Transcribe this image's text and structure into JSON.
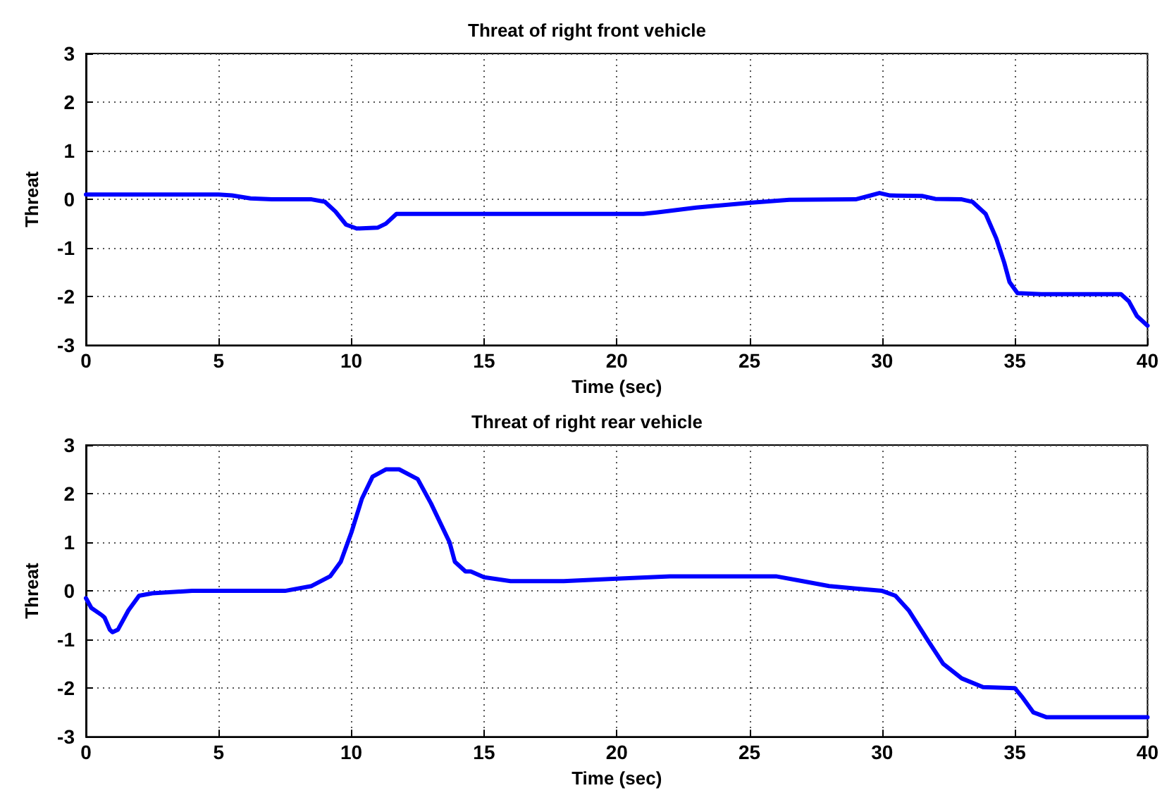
{
  "chart_data": [
    {
      "type": "line",
      "title": "Threat of right front vehicle",
      "xlabel": "Time (sec)",
      "ylabel": "Threat",
      "xlim": [
        0,
        40
      ],
      "xticks": [
        0,
        5,
        10,
        15,
        20,
        25,
        30,
        35,
        40
      ],
      "ylim": [
        -3,
        3
      ],
      "yticks": [
        -3,
        -2,
        -1,
        0,
        1,
        2,
        3
      ],
      "grid": true,
      "marker": "none",
      "line_style": "solid",
      "series": [
        {
          "color": "#0000ff",
          "x": [
            0,
            5,
            5.5,
            6.2,
            7,
            8.5,
            9,
            9.4,
            9.8,
            10.2,
            11,
            11.3,
            11.7,
            15,
            21,
            21.5,
            23,
            25,
            26.5,
            29,
            29.5,
            29.9,
            30.3,
            31.5,
            32,
            33,
            33.4,
            33.9,
            34.3,
            34.6,
            34.8,
            35.1,
            36,
            39,
            39.3,
            39.6,
            40
          ],
          "values": [
            0.1,
            0.1,
            0.08,
            0.02,
            0,
            0,
            -0.05,
            -0.25,
            -0.52,
            -0.6,
            -0.58,
            -0.5,
            -0.3,
            -0.3,
            -0.3,
            -0.27,
            -0.17,
            -0.07,
            -0.01,
            0,
            0.07,
            0.13,
            0.08,
            0.07,
            0.01,
            0,
            -0.05,
            -0.3,
            -0.8,
            -1.3,
            -1.7,
            -1.93,
            -1.95,
            -1.95,
            -2.1,
            -2.4,
            -2.6
          ]
        }
      ]
    },
    {
      "type": "line",
      "title": "Threat of right rear vehicle",
      "xlabel": "Time (sec)",
      "ylabel": "Threat",
      "xlim": [
        0,
        40
      ],
      "xticks": [
        0,
        5,
        10,
        15,
        20,
        25,
        30,
        35,
        40
      ],
      "ylim": [
        -3,
        3
      ],
      "yticks": [
        -3,
        -2,
        -1,
        0,
        1,
        2,
        3
      ],
      "grid": true,
      "marker": "none",
      "line_style": "solid",
      "series": [
        {
          "color": "#0000ff",
          "x": [
            0,
            0.2,
            0.6,
            0.7,
            0.9,
            1,
            1.2,
            1.6,
            2,
            2.5,
            4,
            7.5,
            8.5,
            9.2,
            9.6,
            10,
            10.4,
            10.8,
            11.3,
            11.8,
            12.5,
            13,
            13.7,
            13.9,
            14.3,
            14.5,
            15,
            16,
            18,
            20,
            22,
            26,
            27,
            28,
            29,
            30,
            30.5,
            31,
            31.7,
            32.3,
            33,
            33.8,
            35,
            35.3,
            35.7,
            36.2,
            40
          ],
          "values": [
            -0.15,
            -0.35,
            -0.5,
            -0.55,
            -0.8,
            -0.85,
            -0.8,
            -0.4,
            -0.1,
            -0.05,
            0,
            0,
            0.1,
            0.3,
            0.6,
            1.2,
            1.9,
            2.35,
            2.5,
            2.5,
            2.3,
            1.8,
            1,
            0.6,
            0.4,
            0.4,
            0.28,
            0.2,
            0.2,
            0.25,
            0.3,
            0.3,
            0.2,
            0.1,
            0.05,
            0,
            -0.1,
            -0.4,
            -1,
            -1.5,
            -1.8,
            -1.98,
            -2,
            -2.2,
            -2.5,
            -2.6,
            -2.6
          ]
        }
      ]
    }
  ]
}
